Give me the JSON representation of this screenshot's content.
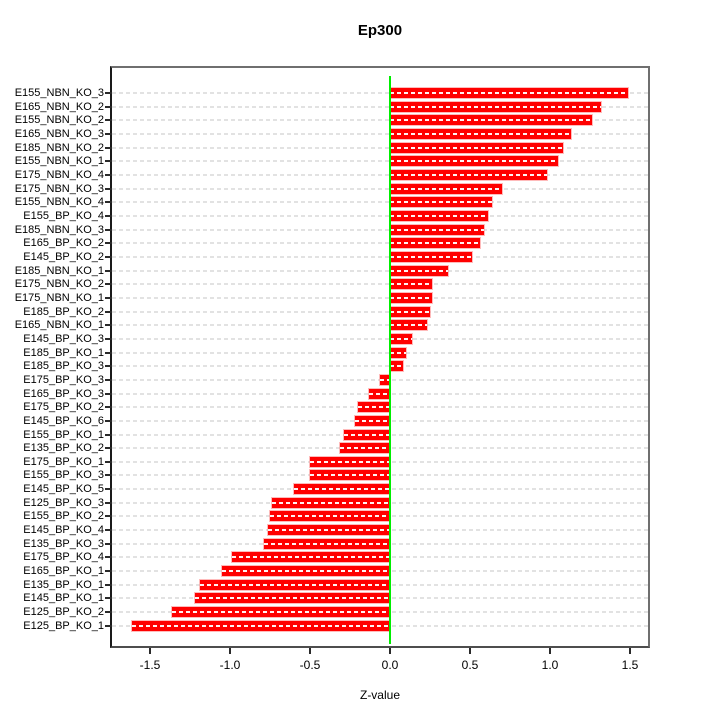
{
  "title": "Ep300",
  "xlabel": "Z-value",
  "axis": {
    "x_tick_labels": [
      "-1.5",
      "-1.0",
      "-0.5",
      "0.0",
      "0.5",
      "1.0",
      "1.5"
    ],
    "x_tick_values": [
      -1.5,
      -1.0,
      -0.5,
      0.0,
      0.5,
      1.0,
      1.5
    ]
  },
  "colors": {
    "bar_fill": "#ff0000",
    "zero_line": "#00ee00",
    "grid_dash": "#e2e2e2",
    "axis_text": "#000000"
  },
  "chart_data": {
    "type": "bar",
    "orientation": "horizontal",
    "title": "Ep300",
    "xlabel": "Z-value",
    "ylabel": "",
    "xlim": [
      -1.74,
      1.61
    ],
    "grid": true,
    "zero_reference_line": 0.0,
    "categories": [
      "E155_NBN_KO_3",
      "E165_NBN_KO_2",
      "E155_NBN_KO_2",
      "E165_NBN_KO_3",
      "E185_NBN_KO_2",
      "E155_NBN_KO_1",
      "E175_NBN_KO_4",
      "E175_NBN_KO_3",
      "E155_NBN_KO_4",
      "E155_BP_KO_4",
      "E185_NBN_KO_3",
      "E165_BP_KO_2",
      "E145_BP_KO_2",
      "E185_NBN_KO_1",
      "E175_NBN_KO_2",
      "E175_NBN_KO_1",
      "E185_BP_KO_2",
      "E165_NBN_KO_1",
      "E145_BP_KO_3",
      "E185_BP_KO_1",
      "E185_BP_KO_3",
      "E175_BP_KO_3",
      "E165_BP_KO_3",
      "E175_BP_KO_2",
      "E145_BP_KO_6",
      "E155_BP_KO_1",
      "E135_BP_KO_2",
      "E175_BP_KO_1",
      "E155_BP_KO_3",
      "E145_BP_KO_5",
      "E125_BP_KO_3",
      "E155_BP_KO_2",
      "E145_BP_KO_4",
      "E135_BP_KO_3",
      "E175_BP_KO_4",
      "E165_BP_KO_1",
      "E135_BP_KO_1",
      "E145_BP_KO_1",
      "E125_BP_KO_2",
      "E125_BP_KO_1"
    ],
    "values": [
      1.49,
      1.32,
      1.26,
      1.13,
      1.08,
      1.05,
      0.98,
      0.7,
      0.64,
      0.61,
      0.59,
      0.56,
      0.51,
      0.36,
      0.26,
      0.26,
      0.25,
      0.23,
      0.14,
      0.1,
      0.08,
      -0.06,
      -0.13,
      -0.2,
      -0.22,
      -0.29,
      -0.31,
      -0.5,
      -0.5,
      -0.6,
      -0.74,
      -0.75,
      -0.76,
      -0.79,
      -0.99,
      -1.05,
      -1.19,
      -1.22,
      -1.36,
      -1.61
    ]
  }
}
